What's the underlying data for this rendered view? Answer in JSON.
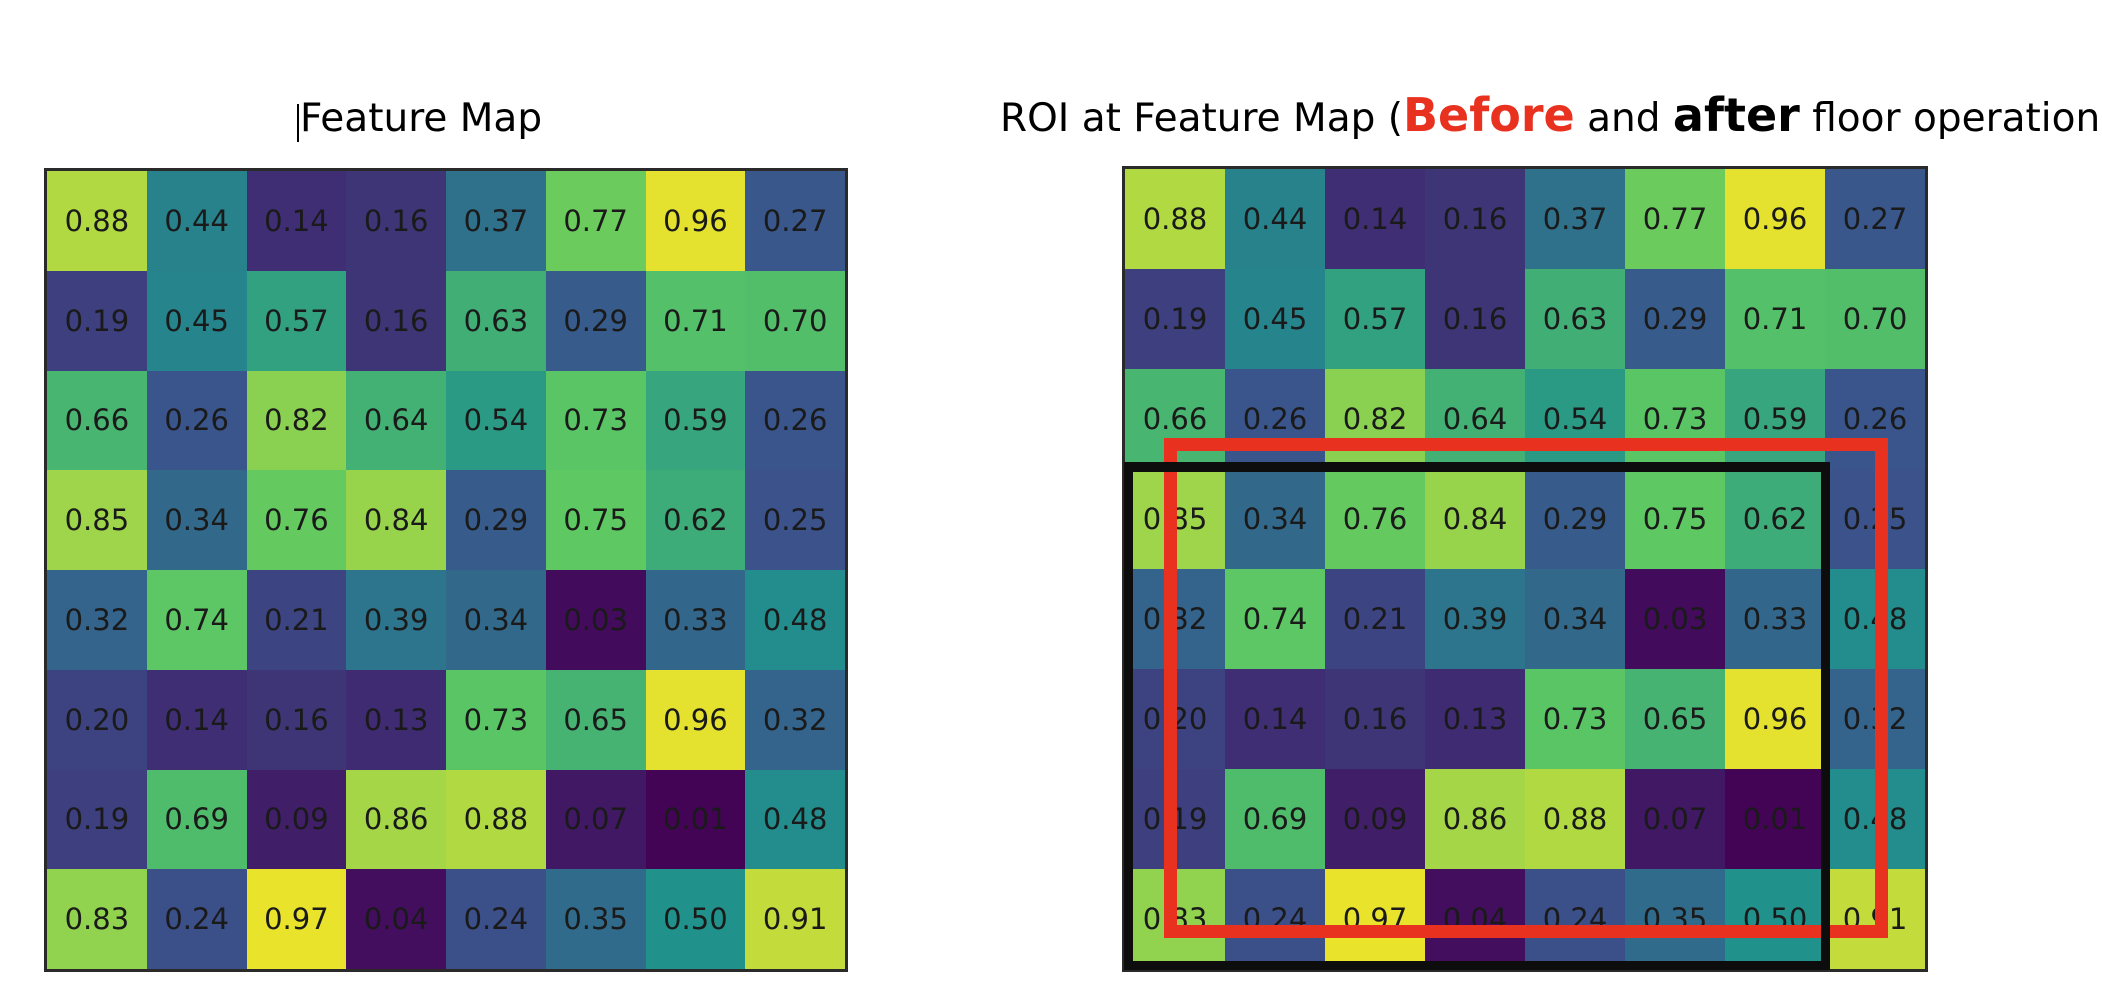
{
  "left_panel": {
    "title": "Feature Map"
  },
  "right_panel": {
    "title_prefix": "ROI at Feature Map (",
    "title_before": "Before",
    "title_mid": " and ",
    "title_after": "after",
    "title_suffix": " floor operation)"
  },
  "feature_map": [
    [
      "0.88",
      "0.44",
      "0.14",
      "0.16",
      "0.37",
      "0.77",
      "0.96",
      "0.27"
    ],
    [
      "0.19",
      "0.45",
      "0.57",
      "0.16",
      "0.63",
      "0.29",
      "0.71",
      "0.70"
    ],
    [
      "0.66",
      "0.26",
      "0.82",
      "0.64",
      "0.54",
      "0.73",
      "0.59",
      "0.26"
    ],
    [
      "0.85",
      "0.34",
      "0.76",
      "0.84",
      "0.29",
      "0.75",
      "0.62",
      "0.25"
    ],
    [
      "0.32",
      "0.74",
      "0.21",
      "0.39",
      "0.34",
      "0.03",
      "0.33",
      "0.48"
    ],
    [
      "0.20",
      "0.14",
      "0.16",
      "0.13",
      "0.73",
      "0.65",
      "0.96",
      "0.32"
    ],
    [
      "0.19",
      "0.69",
      "0.09",
      "0.86",
      "0.88",
      "0.07",
      "0.01",
      "0.48"
    ],
    [
      "0.83",
      "0.24",
      "0.97",
      "0.04",
      "0.24",
      "0.35",
      "0.50",
      "0.91"
    ]
  ],
  "colors": {
    "before_box": "#e8321f",
    "after_box": "#0d0d0d"
  }
}
